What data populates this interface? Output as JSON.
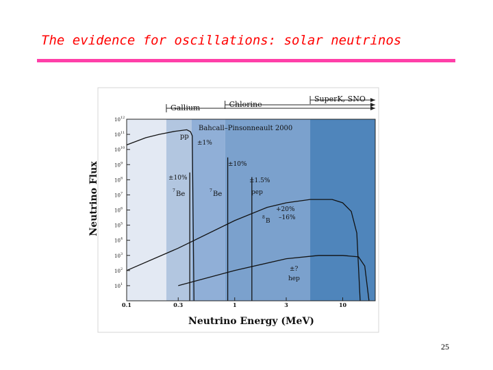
{
  "slide": {
    "title": "The evidence for oscillations: solar neutrinos",
    "page_number": "25"
  },
  "colors": {
    "title": "#ff0000",
    "rule": "#ff3fa8",
    "band1": "#e3e9f3",
    "band2": "#b2c6e0",
    "band3": "#90afd7",
    "band4": "#7ba1cd",
    "band5": "#4f85bb",
    "frame": "#d4d4d4"
  },
  "chart_data": {
    "type": "line",
    "xscale": "log",
    "yscale": "log",
    "xlim": [
      0.1,
      20
    ],
    "ylim": [
      1,
      1000000000000
    ],
    "xlabel": "Neutrino Energy (MeV)",
    "ylabel": "Neutrino Flux",
    "x_ticks": [
      {
        "value": 0.1,
        "label": "0.1"
      },
      {
        "value": 0.3,
        "label": "0.3"
      },
      {
        "value": 1,
        "label": "1"
      },
      {
        "value": 3,
        "label": "3"
      },
      {
        "value": 10,
        "label": "10"
      }
    ],
    "y_ticks": [
      {
        "exp": 1,
        "base": "10",
        "sup": "1"
      },
      {
        "exp": 2,
        "base": "10",
        "sup": "2"
      },
      {
        "exp": 3,
        "base": "10",
        "sup": "3"
      },
      {
        "exp": 4,
        "base": "10",
        "sup": "4"
      },
      {
        "exp": 5,
        "base": "10",
        "sup": "5"
      },
      {
        "exp": 6,
        "base": "10",
        "sup": "6"
      },
      {
        "exp": 7,
        "base": "10",
        "sup": "7"
      },
      {
        "exp": 8,
        "base": "10",
        "sup": "8"
      },
      {
        "exp": 9,
        "base": "10",
        "sup": "9"
      },
      {
        "exp": 10,
        "base": "10",
        "sup": "10"
      },
      {
        "exp": 11,
        "base": "10",
        "sup": "11"
      },
      {
        "exp": 12,
        "base": "10",
        "sup": "12"
      }
    ],
    "threshold_bands": [
      {
        "from": 0.1,
        "to": 0.233,
        "color": "#e3e9f3"
      },
      {
        "from": 0.233,
        "to": 0.4,
        "color": "#b2c6e0"
      },
      {
        "from": 0.4,
        "to": 0.814,
        "color": "#90afd7"
      },
      {
        "from": 0.814,
        "to": 5.0,
        "color": "#7ba1cd"
      },
      {
        "from": 5.0,
        "to": 20,
        "color": "#4f85bb"
      }
    ],
    "experiments": [
      {
        "name": "Gallium",
        "from": 0.233
      },
      {
        "name": "Chlorine",
        "from": 0.814
      },
      {
        "name": "SuperK, SNO",
        "from": 5.0
      }
    ],
    "series": [
      {
        "name": "pp",
        "points": [
          [
            0.1,
            20000000000
          ],
          [
            0.15,
            60000000000
          ],
          [
            0.2,
            100000000000
          ],
          [
            0.28,
            160000000000
          ],
          [
            0.36,
            200000000000
          ],
          [
            0.39,
            150000000000
          ],
          [
            0.405,
            80000000000
          ],
          [
            0.42,
            1
          ]
        ]
      },
      {
        "name": "8B",
        "points": [
          [
            0.1,
            100
          ],
          [
            0.3,
            3000
          ],
          [
            1,
            200000
          ],
          [
            2,
            1500000
          ],
          [
            3,
            3000000
          ],
          [
            5,
            5000000
          ],
          [
            8,
            5000000
          ],
          [
            10,
            3000000
          ],
          [
            12,
            800000
          ],
          [
            13.5,
            30000
          ],
          [
            14.5,
            1
          ]
        ]
      },
      {
        "name": "hep",
        "points": [
          [
            0.3,
            10
          ],
          [
            1,
            100
          ],
          [
            3,
            600
          ],
          [
            6,
            1000
          ],
          [
            10,
            1000
          ],
          [
            14,
            800
          ],
          [
            16,
            200
          ],
          [
            17.5,
            1
          ]
        ]
      }
    ],
    "lines": [
      {
        "name": "7Be-0.38",
        "energy": 0.384,
        "flux": 300000000
      },
      {
        "name": "7Be-0.86",
        "energy": 0.862,
        "flux": 3000000000
      },
      {
        "name": "pep",
        "energy": 1.442,
        "flux": 150000000
      }
    ],
    "annotations": {
      "model": "Bahcall–Pinsonneault 2000",
      "pp": "pp",
      "pp_unc": "±1%",
      "be7_unc": "±10%",
      "be7": "Be",
      "be7_sup": "7",
      "be7b": "Be",
      "be7b_sup": "7",
      "be7b_unc": "±10%",
      "pep_unc": "±1.5%",
      "pep": "pep",
      "b8_unc_plus": "+20%",
      "b8_unc_minus": "–16%",
      "b8": "B",
      "b8_sup": "8",
      "hep_unc": "±?",
      "hep": "hep"
    }
  }
}
